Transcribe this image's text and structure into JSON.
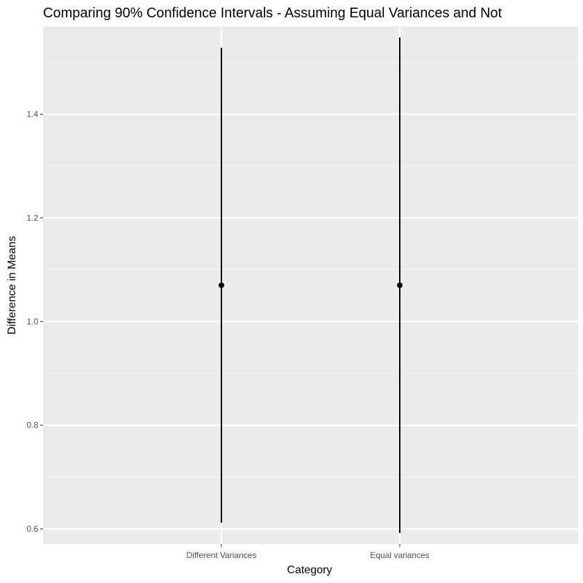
{
  "chart_data": {
    "type": "errorbar",
    "title": "Comparing 90% Confidence Intervals - Assuming Equal Variances and Not",
    "xlabel": "Category",
    "ylabel": "Difference in Means",
    "categories": [
      "Different Variances",
      "Equal variances"
    ],
    "points": [
      {
        "category": "Different Variances",
        "estimate": 1.07,
        "lower": 0.612,
        "upper": 1.528
      },
      {
        "category": "Equal variances",
        "estimate": 1.07,
        "lower": 0.592,
        "upper": 1.548
      }
    ],
    "yticks": [
      0.6,
      0.8,
      1.0,
      1.2,
      1.4
    ],
    "ytick_labels": [
      "0.6",
      "0.8",
      "1.0",
      "1.2",
      "1.4"
    ],
    "ylim": [
      0.5706,
      1.5694
    ],
    "grid": true,
    "colors": {
      "panel_background": "#ebebeb",
      "grid_major": "#ffffff",
      "grid_minor": "#f5f5f5",
      "series": "#000000",
      "tick_text": "#4d4d4d",
      "tick_mark": "#333333"
    }
  }
}
